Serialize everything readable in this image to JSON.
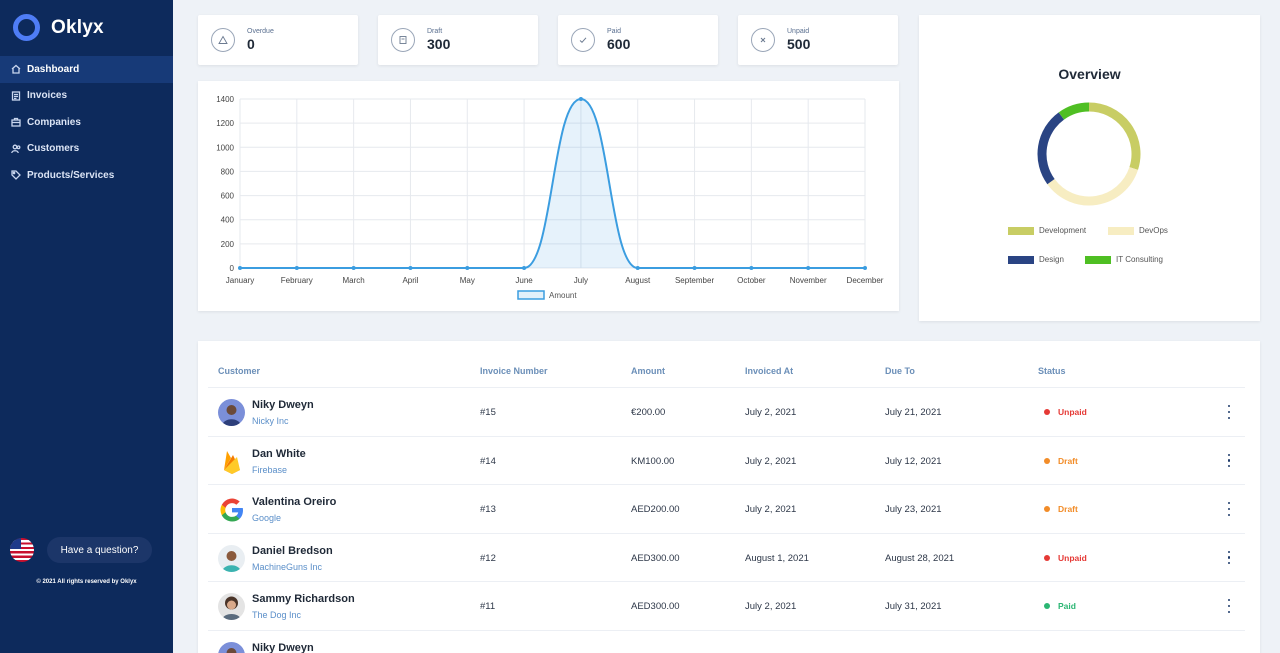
{
  "brand": {
    "name": "Oklyx"
  },
  "sidebar": {
    "items": [
      {
        "label": "Dashboard",
        "icon": "home-icon",
        "active": true
      },
      {
        "label": "Invoices",
        "icon": "invoice-icon",
        "active": false
      },
      {
        "label": "Companies",
        "icon": "briefcase-icon",
        "active": false
      },
      {
        "label": "Customers",
        "icon": "users-icon",
        "active": false
      },
      {
        "label": "Products/Services",
        "icon": "tag-icon",
        "active": false
      }
    ],
    "help_label": "Have a question?",
    "copyright": "© 2021 All rights reserved by Oklyx"
  },
  "stats": [
    {
      "label": "Overdue",
      "value": "0",
      "icon": "warning-icon"
    },
    {
      "label": "Draft",
      "value": "300",
      "icon": "document-icon"
    },
    {
      "label": "Paid",
      "value": "600",
      "icon": "check-icon"
    },
    {
      "label": "Unpaid",
      "value": "500",
      "icon": "close-icon"
    }
  ],
  "chart_data": {
    "type": "line",
    "categories": [
      "January",
      "February",
      "March",
      "April",
      "May",
      "June",
      "July",
      "August",
      "September",
      "October",
      "November",
      "December"
    ],
    "series": [
      {
        "name": "Amount",
        "values": [
          0,
          0,
          0,
          0,
          0,
          0,
          1400,
          0,
          0,
          0,
          0,
          0
        ],
        "color": "#3b9de0"
      }
    ],
    "ylim": [
      0,
      1400
    ],
    "yticks": [
      0,
      200,
      400,
      600,
      800,
      1000,
      1200,
      1400
    ],
    "grid": true,
    "legend_position": "bottom"
  },
  "overview": {
    "title": "Overview",
    "chart_data": {
      "type": "pie",
      "labels": [
        "Development",
        "DevOps",
        "Design",
        "IT Consulting"
      ],
      "values": [
        30,
        35,
        25,
        10
      ],
      "colors": [
        "#c8cd64",
        "#f7edc2",
        "#2a4483",
        "#4fbf23"
      ]
    }
  },
  "table": {
    "headers": {
      "customer": "Customer",
      "invoice_number": "Invoice Number",
      "amount": "Amount",
      "invoiced_at": "Invoiced At",
      "due_to": "Due To",
      "status": "Status"
    },
    "rows": [
      {
        "name": "Niky Dweyn",
        "company": "Nicky Inc",
        "invoice": "#15",
        "amount": "€200.00",
        "invoiced": "July 2, 2021",
        "due": "July 21, 2021",
        "status": "Unpaid",
        "status_color": "#e53935",
        "avatar": "person-avatar"
      },
      {
        "name": "Dan White",
        "company": "Firebase",
        "invoice": "#14",
        "amount": "KM100.00",
        "invoiced": "July 2, 2021",
        "due": "July 12, 2021",
        "status": "Draft",
        "status_color": "#f28c28",
        "avatar": "firebase-logo"
      },
      {
        "name": "Valentina Oreiro",
        "company": "Google",
        "invoice": "#13",
        "amount": "AED200.00",
        "invoiced": "July 2, 2021",
        "due": "July 23, 2021",
        "status": "Draft",
        "status_color": "#f28c28",
        "avatar": "google-logo"
      },
      {
        "name": "Daniel Bredson",
        "company": "MachineGuns Inc",
        "invoice": "#12",
        "amount": "AED300.00",
        "invoiced": "August 1, 2021",
        "due": "August 28, 2021",
        "status": "Unpaid",
        "status_color": "#e53935",
        "avatar": "person-avatar"
      },
      {
        "name": "Sammy Richardson",
        "company": "The Dog Inc",
        "invoice": "#11",
        "amount": "AED300.00",
        "invoiced": "July 2, 2021",
        "due": "July 31, 2021",
        "status": "Paid",
        "status_color": "#2bb673",
        "avatar": "person-avatar"
      },
      {
        "name": "Niky Dweyn",
        "company": "",
        "invoice": "",
        "amount": "",
        "invoiced": "",
        "due": "",
        "status": "",
        "status_color": "#2bb673",
        "avatar": "person-avatar"
      }
    ]
  }
}
